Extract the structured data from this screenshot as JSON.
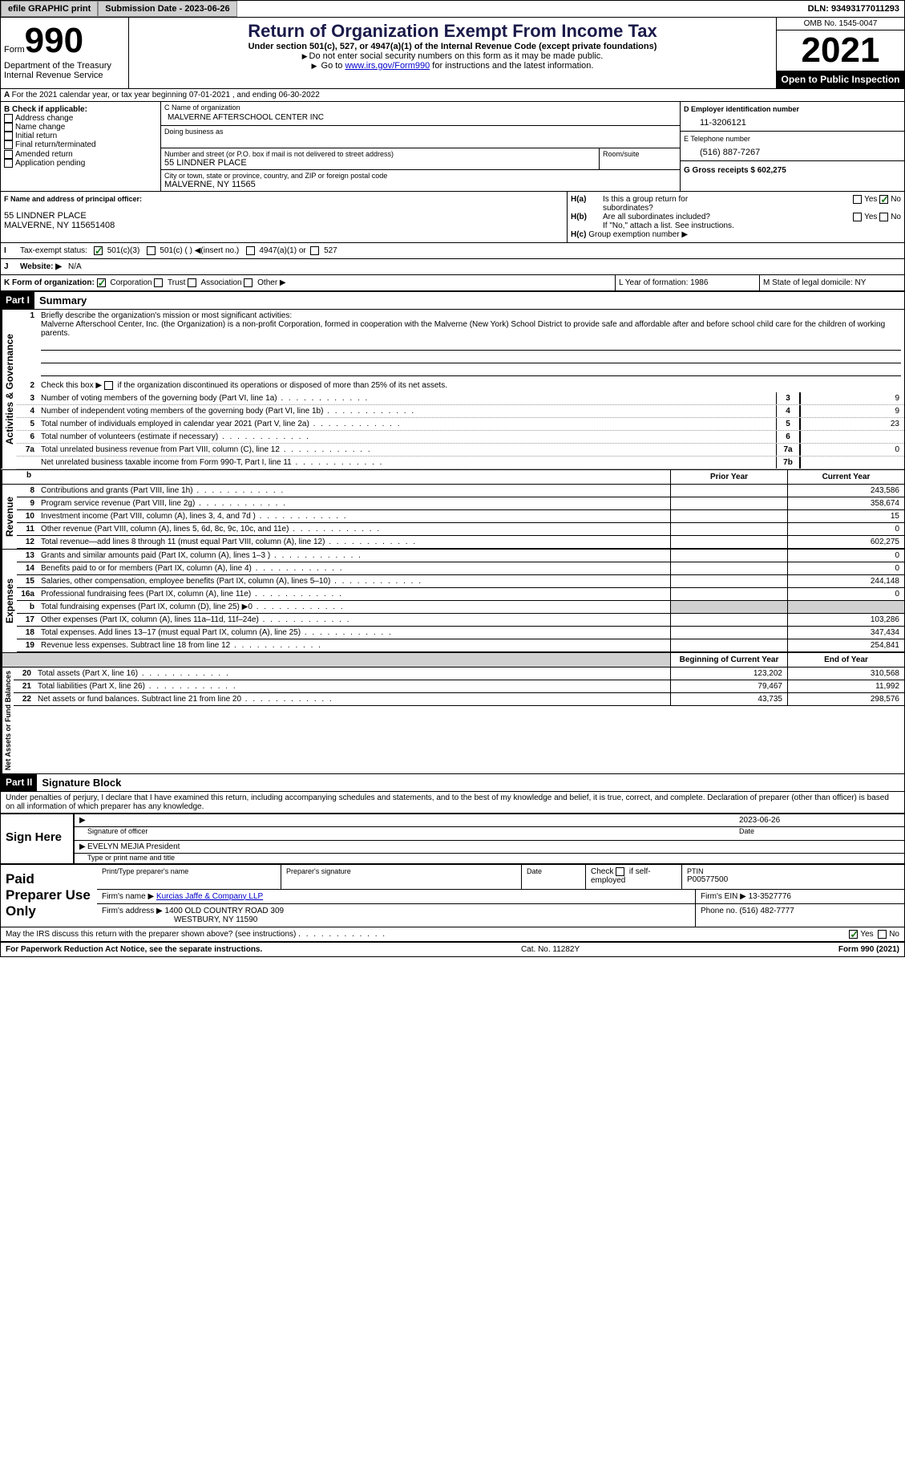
{
  "topbar": {
    "efile_label": "efile GRAPHIC print",
    "submission_label": "Submission Date - 2023-06-26",
    "dln_label": "DLN: 93493177011293"
  },
  "header": {
    "form_word": "Form",
    "form_number": "990",
    "dept": "Department of the Treasury\nInternal Revenue Service",
    "title": "Return of Organization Exempt From Income Tax",
    "subtitle": "Under section 501(c), 527, or 4947(a)(1) of the Internal Revenue Code (except private foundations)",
    "note1": "Do not enter social security numbers on this form as it may be made public.",
    "note2_pre": "Go to ",
    "note2_link": "www.irs.gov/Form990",
    "note2_post": " for instructions and the latest information.",
    "omb": "OMB No. 1545-0047",
    "year": "2021",
    "open_public": "Open to Public Inspection"
  },
  "lineA": "For the 2021 calendar year, or tax year beginning 07-01-2021   , and ending 06-30-2022",
  "box_b": {
    "label": "B Check if applicable:",
    "items": [
      "Address change",
      "Name change",
      "Initial return",
      "Final return/terminated",
      "Amended return",
      "Application pending"
    ]
  },
  "box_c": {
    "name_label": "C Name of organization",
    "name": "MALVERNE AFTERSCHOOL CENTER INC",
    "dba_label": "Doing business as",
    "street_label": "Number and street (or P.O. box if mail is not delivered to street address)",
    "room_label": "Room/suite",
    "street": "55 LINDNER PLACE",
    "city_label": "City or town, state or province, country, and ZIP or foreign postal code",
    "city": "MALVERNE, NY  11565"
  },
  "box_d": {
    "ein_label": "D Employer identification number",
    "ein": "11-3206121",
    "tel_label": "E Telephone number",
    "tel": "(516) 887-7267",
    "gross_label": "G Gross receipts $ 602,275"
  },
  "box_f": {
    "label": "F  Name and address of principal officer:",
    "addr1": "55 LINDNER PLACE",
    "addr2": "MALVERNE, NY  115651408"
  },
  "box_h": {
    "ha": "Is this a group return for",
    "ha2": "subordinates?",
    "hb": "Are all subordinates included?",
    "hb_note": "If \"No,\" attach a list. See instructions.",
    "hc": "Group exemption number ▶",
    "yes": "Yes",
    "no": "No"
  },
  "box_i": {
    "label": "Tax-exempt status:",
    "opts": [
      "501(c)(3)",
      "501(c) (  ) ◀(insert no.)",
      "4947(a)(1) or",
      "527"
    ]
  },
  "box_j": {
    "label": "Website: ▶",
    "val": "N/A"
  },
  "box_k": {
    "label": "K Form of organization:",
    "opts": [
      "Corporation",
      "Trust",
      "Association",
      "Other ▶"
    ]
  },
  "box_l": {
    "label": "L Year of formation: 1986"
  },
  "box_m": {
    "label": "M State of legal domicile: NY"
  },
  "part1": {
    "header": "Part I",
    "title": "Summary",
    "side_gov": "Activities & Governance",
    "side_rev": "Revenue",
    "side_exp": "Expenses",
    "side_net": "Net Assets or Fund Balances",
    "l1": "Briefly describe the organization's mission or most significant activities:",
    "l1_text": "Malverne Afterschool Center, Inc. (the Organization) is a non-profit Corporation, formed in cooperation with the Malverne (New York) School District to provide safe and affordable after and before school child care for the children of working parents.",
    "l2": "Check this box ▶",
    "l2b": "if the organization discontinued its operations or disposed of more than 25% of its net assets.",
    "lines_gov": [
      {
        "n": "3",
        "d": "Number of voting members of the governing body (Part VI, line 1a)",
        "b": "3",
        "v": "9"
      },
      {
        "n": "4",
        "d": "Number of independent voting members of the governing body (Part VI, line 1b)",
        "b": "4",
        "v": "9"
      },
      {
        "n": "5",
        "d": "Total number of individuals employed in calendar year 2021 (Part V, line 2a)",
        "b": "5",
        "v": "23"
      },
      {
        "n": "6",
        "d": "Total number of volunteers (estimate if necessary)",
        "b": "6",
        "v": ""
      },
      {
        "n": "7a",
        "d": "Total unrelated business revenue from Part VIII, column (C), line 12",
        "b": "7a",
        "v": "0"
      },
      {
        "n": "",
        "d": "Net unrelated business taxable income from Form 990-T, Part I, line 11",
        "b": "7b",
        "v": ""
      }
    ],
    "col_prior": "Prior Year",
    "col_current": "Current Year",
    "lines_rev": [
      {
        "n": "8",
        "d": "Contributions and grants (Part VIII, line 1h)",
        "p": "",
        "c": "243,586"
      },
      {
        "n": "9",
        "d": "Program service revenue (Part VIII, line 2g)",
        "p": "",
        "c": "358,674"
      },
      {
        "n": "10",
        "d": "Investment income (Part VIII, column (A), lines 3, 4, and 7d )",
        "p": "",
        "c": "15"
      },
      {
        "n": "11",
        "d": "Other revenue (Part VIII, column (A), lines 5, 6d, 8c, 9c, 10c, and 11e)",
        "p": "",
        "c": "0"
      },
      {
        "n": "12",
        "d": "Total revenue—add lines 8 through 11 (must equal Part VIII, column (A), line 12)",
        "p": "",
        "c": "602,275"
      }
    ],
    "lines_exp": [
      {
        "n": "13",
        "d": "Grants and similar amounts paid (Part IX, column (A), lines 1–3 )",
        "p": "",
        "c": "0"
      },
      {
        "n": "14",
        "d": "Benefits paid to or for members (Part IX, column (A), line 4)",
        "p": "",
        "c": "0"
      },
      {
        "n": "15",
        "d": "Salaries, other compensation, employee benefits (Part IX, column (A), lines 5–10)",
        "p": "",
        "c": "244,148"
      },
      {
        "n": "16a",
        "d": "Professional fundraising fees (Part IX, column (A), line 11e)",
        "p": "",
        "c": "0"
      },
      {
        "n": "b",
        "d": "Total fundraising expenses (Part IX, column (D), line 25) ▶0",
        "p": "grey",
        "c": "grey"
      },
      {
        "n": "17",
        "d": "Other expenses (Part IX, column (A), lines 11a–11d, 11f–24e)",
        "p": "",
        "c": "103,286"
      },
      {
        "n": "18",
        "d": "Total expenses. Add lines 13–17 (must equal Part IX, column (A), line 25)",
        "p": "",
        "c": "347,434"
      },
      {
        "n": "19",
        "d": "Revenue less expenses. Subtract line 18 from line 12",
        "p": "",
        "c": "254,841"
      }
    ],
    "col_begin": "Beginning of Current Year",
    "col_end": "End of Year",
    "lines_net": [
      {
        "n": "20",
        "d": "Total assets (Part X, line 16)",
        "p": "123,202",
        "c": "310,568"
      },
      {
        "n": "21",
        "d": "Total liabilities (Part X, line 26)",
        "p": "79,467",
        "c": "11,992"
      },
      {
        "n": "22",
        "d": "Net assets or fund balances. Subtract line 21 from line 20",
        "p": "43,735",
        "c": "298,576"
      }
    ]
  },
  "part2": {
    "header": "Part II",
    "title": "Signature Block",
    "decl": "Under penalties of perjury, I declare that I have examined this return, including accompanying schedules and statements, and to the best of my knowledge and belief, it is true, correct, and complete. Declaration of preparer (other than officer) is based on all information of which preparer has any knowledge.",
    "sign_here": "Sign Here",
    "sig_officer": "Signature of officer",
    "sig_date": "2023-06-26",
    "date_lbl": "Date",
    "officer_name": "EVELYN MEJIA  President",
    "type_name": "Type or print name and title",
    "paid": "Paid Preparer Use Only",
    "prep_name_lbl": "Print/Type preparer's name",
    "prep_sig_lbl": "Preparer's signature",
    "check_self": "Check",
    "check_self2": "if self-employed",
    "ptin_lbl": "PTIN",
    "ptin": "P00577500",
    "firm_name_lbl": "Firm's name    ▶",
    "firm_name": "Kurcias Jaffe & Company LLP",
    "firm_ein_lbl": "Firm's EIN ▶",
    "firm_ein": "13-3527776",
    "firm_addr_lbl": "Firm's address ▶",
    "firm_addr": "1400 OLD COUNTRY ROAD 309",
    "firm_addr2": "WESTBURY, NY  11590",
    "phone_lbl": "Phone no. (516) 482-7777",
    "discuss": "May the IRS discuss this return with the preparer shown above? (see instructions)",
    "yes": "Yes",
    "no": "No"
  },
  "footer": {
    "left": "For Paperwork Reduction Act Notice, see the separate instructions.",
    "mid": "Cat. No. 11282Y",
    "right": "Form 990 (2021)"
  },
  "colors": {
    "link": "#0000cc",
    "check_green": "#1a7a1a"
  }
}
